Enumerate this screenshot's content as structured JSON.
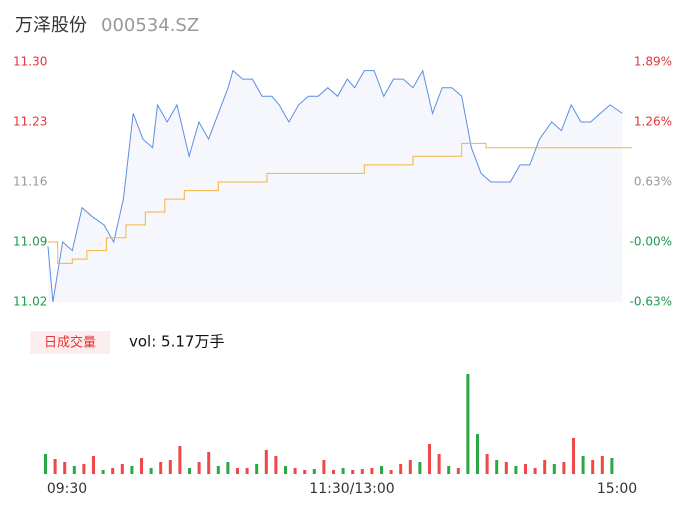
{
  "header": {
    "name": "万泽股份",
    "code": "000534.SZ"
  },
  "chart_data": [
    {
      "type": "line",
      "xlim": [
        0,
        240
      ],
      "ylim": [
        11.02,
        11.3
      ],
      "yticks": [
        {
          "value": 11.02,
          "label": "11.02"
        },
        {
          "value": 11.09,
          "label": "11.09"
        },
        {
          "value": 11.16,
          "label": "11.16"
        },
        {
          "value": 11.23,
          "label": "11.23"
        },
        {
          "value": 11.3,
          "label": "11.30"
        }
      ],
      "ytick_colors": [
        "#1a9c4a",
        "#1a9c4a",
        "#999999",
        "#e5343a",
        "#e5343a"
      ],
      "y2lim": [
        -0.63,
        1.89
      ],
      "y2ticks": [
        {
          "value": -0.63,
          "label": "-0.63%"
        },
        {
          "value": 0,
          "label": "-0.00%"
        },
        {
          "value": 0.63,
          "label": "0.63%"
        },
        {
          "value": 1.26,
          "label": "1.26%"
        },
        {
          "value": 1.89,
          "label": "1.89%"
        }
      ],
      "fill": "#f5f7fd",
      "series": [
        {
          "color": "#5b8fe3",
          "step": false,
          "x": [
            0,
            2,
            6,
            10,
            14,
            18,
            23,
            27,
            31,
            35,
            39,
            43,
            45,
            49,
            53,
            58,
            62,
            66,
            70,
            74,
            76,
            80,
            84,
            88,
            92,
            95,
            99,
            103,
            107,
            111,
            115,
            119,
            123,
            126,
            130,
            134,
            138,
            142,
            146,
            150,
            154,
            158,
            162,
            166,
            170,
            174,
            178,
            182,
            186,
            190,
            194,
            198,
            202,
            207,
            211,
            215,
            219,
            223,
            227,
            231,
            236
          ],
          "values": [
            11.085,
            11.02,
            11.09,
            11.08,
            11.13,
            11.12,
            11.11,
            11.09,
            11.14,
            11.24,
            11.21,
            11.2,
            11.25,
            11.23,
            11.25,
            11.19,
            11.23,
            11.21,
            11.24,
            11.27,
            11.29,
            11.28,
            11.28,
            11.26,
            11.26,
            11.25,
            11.23,
            11.25,
            11.26,
            11.26,
            11.27,
            11.26,
            11.28,
            11.27,
            11.29,
            11.29,
            11.26,
            11.28,
            11.28,
            11.27,
            11.29,
            11.24,
            11.27,
            11.27,
            11.26,
            11.2,
            11.17,
            11.16,
            11.16,
            11.16,
            11.18,
            11.18,
            11.21,
            11.23,
            11.22,
            11.25,
            11.23,
            11.23,
            11.24,
            11.25,
            11.24
          ]
        },
        {
          "color": "#f5b33e",
          "step": true,
          "x": [
            0,
            4,
            10,
            16,
            24,
            32,
            40,
            48,
            56,
            70,
            90,
            130,
            150,
            170,
            180,
            240
          ],
          "values": [
            11.09,
            11.065,
            11.07,
            11.08,
            11.095,
            11.11,
            11.125,
            11.14,
            11.15,
            11.16,
            11.17,
            11.18,
            11.19,
            11.205,
            11.2,
            11.2
          ]
        }
      ]
    },
    {
      "type": "bar",
      "title": "日成交量",
      "annotation": "vol: 5.17万手",
      "xlim": [
        0,
        240
      ],
      "ylim": [
        0,
        100
      ],
      "xticks": [
        {
          "value": 0,
          "label": "09:30"
        },
        {
          "value": 120,
          "label": "11:30/13:00"
        },
        {
          "value": 240,
          "label": "15:00"
        }
      ],
      "x": [
        0,
        4,
        8,
        12,
        16,
        20,
        24,
        28,
        32,
        36,
        40,
        44,
        48,
        52,
        56,
        60,
        64,
        68,
        72,
        76,
        80,
        84,
        88,
        92,
        96,
        100,
        104,
        108,
        112,
        116,
        120,
        124,
        128,
        132,
        136,
        140,
        144,
        148,
        152,
        156,
        160,
        164,
        168,
        172,
        176,
        180,
        184,
        188,
        192,
        196,
        200,
        204,
        208,
        212,
        216,
        220,
        224,
        228,
        232,
        236
      ],
      "values": [
        20,
        15,
        12,
        8,
        10,
        18,
        4,
        6,
        10,
        8,
        16,
        6,
        12,
        14,
        28,
        6,
        12,
        22,
        8,
        12,
        6,
        6,
        10,
        24,
        18,
        8,
        6,
        4,
        5,
        14,
        4,
        6,
        4,
        5,
        6,
        8,
        4,
        10,
        14,
        12,
        30,
        20,
        8,
        6,
        100,
        40,
        20,
        14,
        12,
        8,
        10,
        6,
        14,
        10,
        12,
        36,
        18,
        14,
        18,
        16
      ],
      "colors": [
        "#2aa845",
        "#f04848",
        "#f04848",
        "#2aa845",
        "#f04848",
        "#f04848",
        "#2aa845",
        "#f04848",
        "#f04848",
        "#2aa845",
        "#f04848",
        "#2aa845",
        "#f04848",
        "#f04848",
        "#f04848",
        "#2aa845",
        "#f04848",
        "#f04848",
        "#2aa845",
        "#2aa845",
        "#f04848",
        "#f04848",
        "#2aa845",
        "#f04848",
        "#f04848",
        "#2aa845",
        "#f04848",
        "#f04848",
        "#2aa845",
        "#f04848",
        "#f04848",
        "#2aa845",
        "#f04848",
        "#f04848",
        "#f04848",
        "#2aa845",
        "#f04848",
        "#f04848",
        "#f04848",
        "#2aa845",
        "#f04848",
        "#f04848",
        "#2aa845",
        "#f04848",
        "#2aa845",
        "#2aa845",
        "#f04848",
        "#2aa845",
        "#f04848",
        "#2aa845",
        "#f04848",
        "#f04848",
        "#f04848",
        "#2aa845",
        "#f04848",
        "#f04848",
        "#2aa845",
        "#f04848",
        "#f04848",
        "#2aa845"
      ]
    }
  ]
}
